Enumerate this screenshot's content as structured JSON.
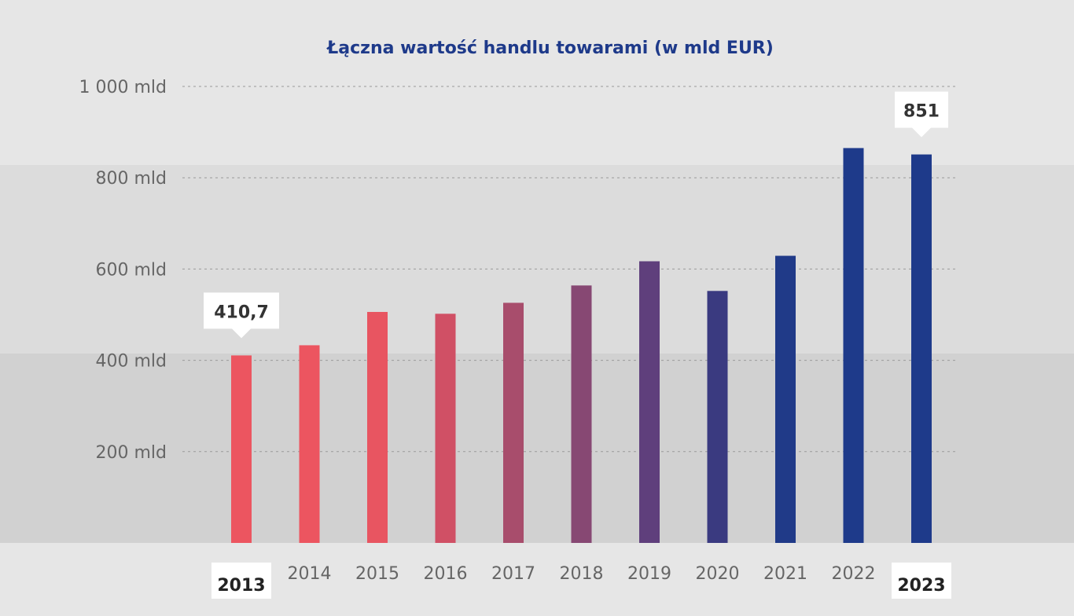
{
  "chart_data": {
    "type": "bar",
    "title": "Łączna wartość handlu towarami (w mld EUR)",
    "xlabel": "",
    "ylabel": "",
    "ylim": [
      0,
      1000
    ],
    "yticks": [
      200,
      400,
      600,
      800,
      1000
    ],
    "ytick_labels": [
      "200 mld",
      "400 mld",
      "600 mld",
      "800 mld",
      "1 000 mld"
    ],
    "grid": "horizontal dashed",
    "categories": [
      "2013",
      "2014",
      "2015",
      "2016",
      "2017",
      "2018",
      "2019",
      "2020",
      "2021",
      "2022",
      "2023"
    ],
    "values": [
      410.7,
      433,
      506,
      502,
      526,
      564,
      617,
      552,
      629,
      865,
      851
    ],
    "bar_colors": [
      "#ec5560",
      "#ec5560",
      "#e85561",
      "#d05065",
      "#a84d6c",
      "#874873",
      "#5f3f7c",
      "#3a3a80",
      "#203a88",
      "#1e3a8a",
      "#1e3a8a"
    ],
    "data_labels": [
      {
        "category": "2013",
        "text": "410,7"
      },
      {
        "category": "2023",
        "text": "851"
      }
    ],
    "highlighted_categories": [
      "2013",
      "2023"
    ],
    "title_color": "#1e3a8a"
  }
}
